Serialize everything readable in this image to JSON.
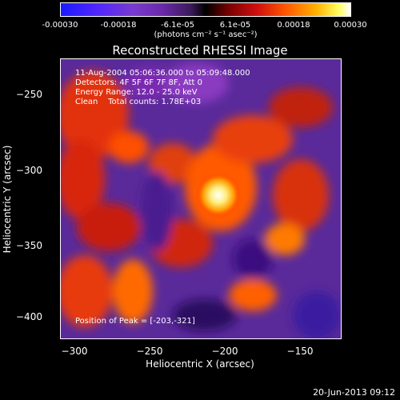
{
  "colorbar": {
    "ticks": [
      "-0.00030",
      "-0.00018",
      "-6.1e-05",
      "6.1e-05",
      "0.00018",
      "0.00030"
    ],
    "unit": "(photons cm⁻² s⁻¹ asec⁻²)"
  },
  "chart_data": {
    "type": "heatmap",
    "title": "Reconstructed RHESSI Image",
    "xlabel": "Heliocentric X (arcsec)",
    "ylabel": "Heliocentric Y (arcsec)",
    "xlim": [
      -308,
      -120
    ],
    "ylim": [
      -418,
      -233
    ],
    "xticks": [
      "−300",
      "−250",
      "−200",
      "−150"
    ],
    "yticks": [
      "−250",
      "−300",
      "−350",
      "−400"
    ],
    "color_range": [
      -0.0003,
      0.0003
    ],
    "peak": [
      -203,
      -321
    ],
    "annotations": [
      "11-Aug-2004 05:06:36.000 to 05:09:48.000",
      "Detectors: 4F 5F 6F 7F 8F, Att 0",
      "Energy Range: 12.0 - 25.0 keV",
      "Clean    Total counts: 1.78E+03"
    ],
    "peak_label": "Position of Peak = [-203,-321]"
  },
  "datestamp": "20-Jun-2013 09:12"
}
